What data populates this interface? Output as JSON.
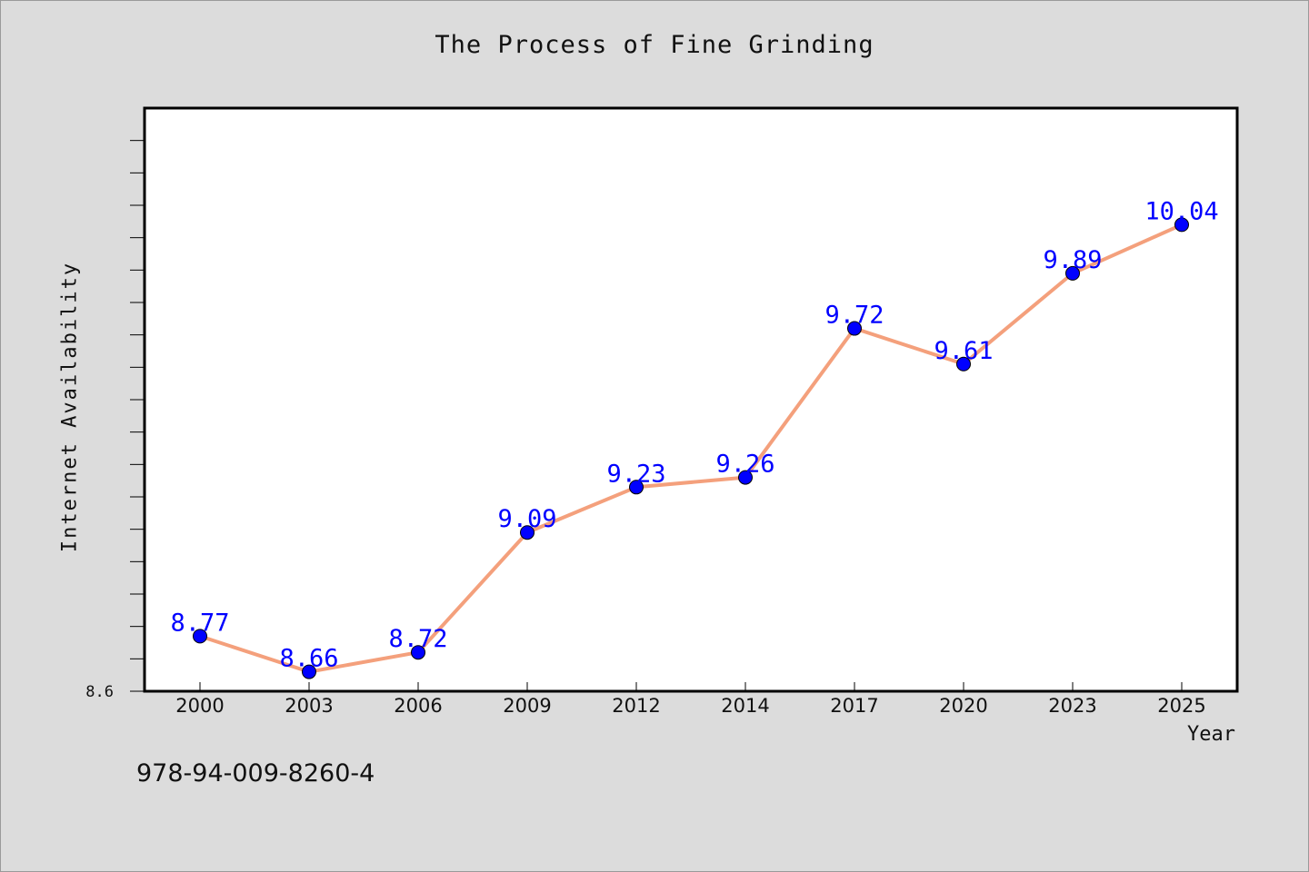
{
  "chart_data": {
    "type": "line",
    "title": "The Process of Fine Grinding",
    "xlabel": "Year",
    "ylabel": "Internet Availability",
    "categories": [
      "2000",
      "2003",
      "2006",
      "2009",
      "2012",
      "2014",
      "2017",
      "2020",
      "2023",
      "2025"
    ],
    "series": [
      {
        "values": [
          8.77,
          8.66,
          8.72,
          9.09,
          9.23,
          9.26,
          9.72,
          9.61,
          9.89,
          10.04
        ]
      }
    ],
    "ylim": [
      8.6,
      10.4
    ],
    "y_tick_labels": [
      "8.6"
    ],
    "y_minor_tick_step": 0.1,
    "grid": false,
    "legend": "none",
    "line_color": "#f4a07c",
    "marker_color": "#0000ff",
    "data_label_color": "#0000ff"
  },
  "annotation": {
    "isbn": "978-94-009-8260-4"
  }
}
